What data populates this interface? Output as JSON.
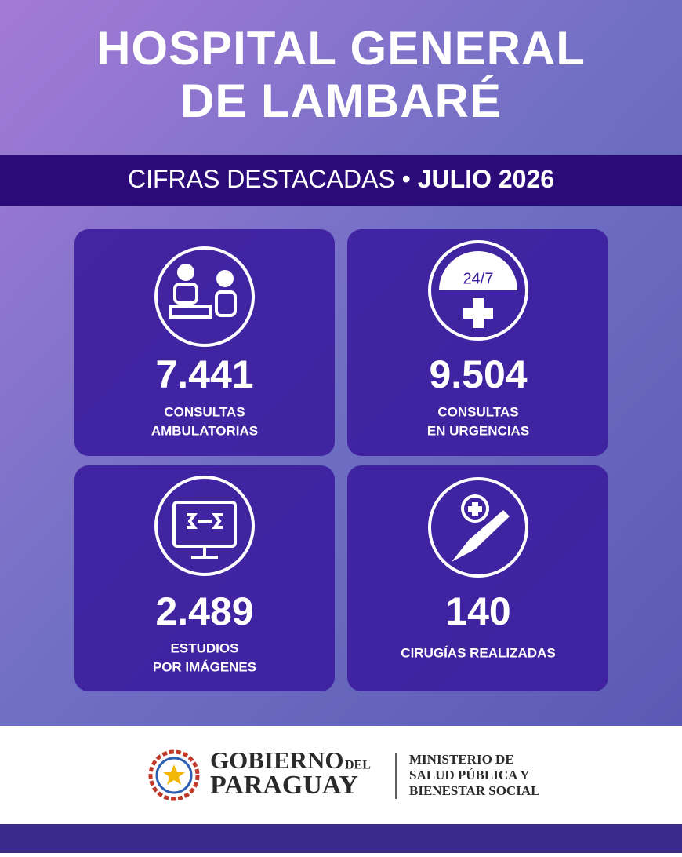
{
  "header": {
    "title_lines": [
      "HOSPITAL GENERAL",
      "DE LAMBARÉ"
    ]
  },
  "banner": {
    "label": "CIFRAS DESTACADAS",
    "separator": "•",
    "period": "JULIO 2026"
  },
  "cards": [
    {
      "value": "7.441",
      "label_lines": [
        "CONSULTAS",
        "AMBULATORIAS"
      ]
    },
    {
      "icon_text": "24/7",
      "value": "9.504",
      "label_lines": [
        "CONSULTAS",
        "EN URGENCIAS"
      ]
    },
    {
      "value": "2.489",
      "label_lines": [
        "ESTUDIOS",
        "POR IMÁGENES"
      ]
    },
    {
      "value": "140",
      "label_lines": [
        "CIRUGÍAS REALIZADAS"
      ]
    }
  ],
  "footer": {
    "gov_line1": "GOBIERNO",
    "gov_small": "DEL",
    "gov_line2": "PARAGUAY",
    "ministry_lines": [
      "MINISTERIO DE",
      "SALUD PÚBLICA Y",
      "BIENESTAR SOCIAL"
    ]
  }
}
